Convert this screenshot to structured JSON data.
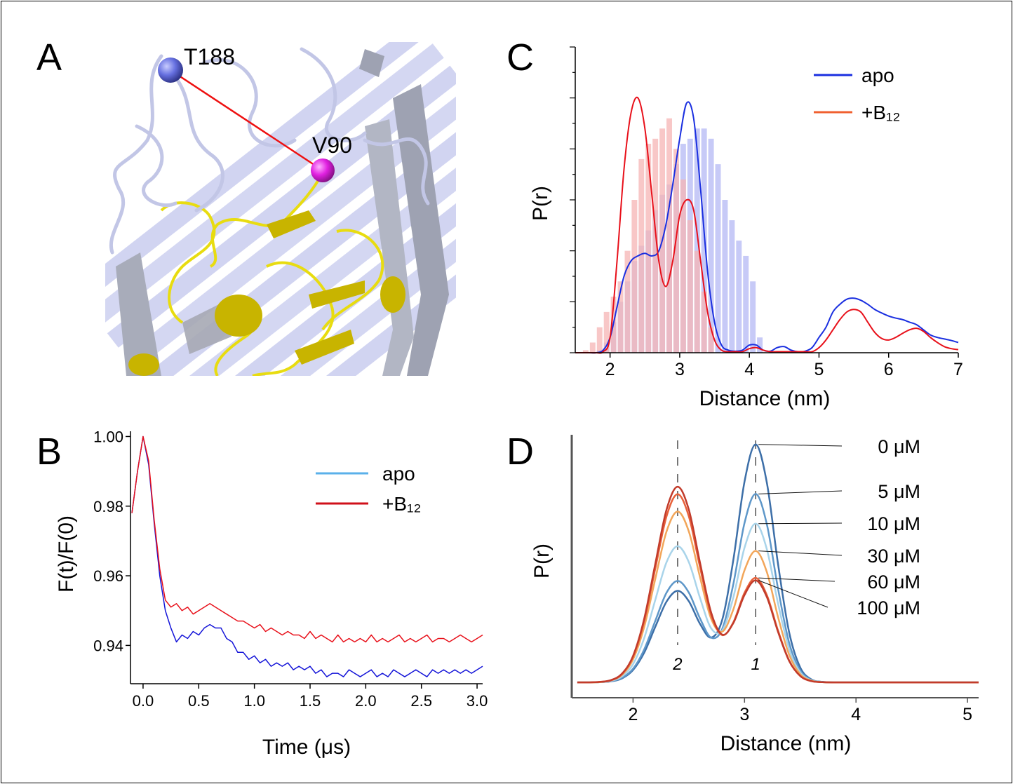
{
  "structure": {
    "label": "A",
    "residues": [
      "T188",
      "V90"
    ]
  },
  "chart_data": [
    {
      "type": "line",
      "label": "B",
      "xlabel": "Time (μs)",
      "ylabel": "F(t)/F(0)",
      "x": [
        -0.1,
        -0.05,
        0,
        0.05,
        0.1,
        0.15,
        0.2,
        0.25,
        0.3,
        0.35,
        0.4,
        0.45,
        0.5,
        0.55,
        0.6,
        0.65,
        0.7,
        0.75,
        0.8,
        0.85,
        0.9,
        0.95,
        1.0,
        1.05,
        1.1,
        1.15,
        1.2,
        1.25,
        1.3,
        1.35,
        1.4,
        1.45,
        1.5,
        1.55,
        1.6,
        1.65,
        1.7,
        1.75,
        1.8,
        1.85,
        1.9,
        1.95,
        2.0,
        2.05,
        2.1,
        2.15,
        2.2,
        2.25,
        2.3,
        2.35,
        2.4,
        2.45,
        2.5,
        2.55,
        2.6,
        2.65,
        2.7,
        2.75,
        2.8,
        2.85,
        2.9,
        2.95,
        3.0,
        3.05
      ],
      "series": [
        {
          "name": "apo",
          "color": "#1414d8",
          "legend_color": "#5ab0ea",
          "values": [
            0.978,
            0.99,
            1.0,
            0.992,
            0.975,
            0.96,
            0.95,
            0.945,
            0.941,
            0.943,
            0.942,
            0.944,
            0.943,
            0.945,
            0.946,
            0.945,
            0.945,
            0.942,
            0.941,
            0.938,
            0.938,
            0.936,
            0.937,
            0.935,
            0.936,
            0.934,
            0.935,
            0.934,
            0.935,
            0.933,
            0.934,
            0.933,
            0.934,
            0.932,
            0.933,
            0.931,
            0.932,
            0.932,
            0.931,
            0.933,
            0.932,
            0.931,
            0.932,
            0.933,
            0.931,
            0.932,
            0.931,
            0.933,
            0.932,
            0.931,
            0.932,
            0.933,
            0.932,
            0.931,
            0.933,
            0.932,
            0.933,
            0.932,
            0.933,
            0.932,
            0.933,
            0.932,
            0.933,
            0.934
          ]
        },
        {
          "name": "+B₁₂",
          "color": "#e8101a",
          "legend_color": "#d0101a",
          "values": [
            0.978,
            0.99,
            1.0,
            0.993,
            0.976,
            0.962,
            0.953,
            0.951,
            0.952,
            0.95,
            0.951,
            0.949,
            0.95,
            0.951,
            0.952,
            0.951,
            0.95,
            0.949,
            0.948,
            0.947,
            0.947,
            0.946,
            0.945,
            0.946,
            0.944,
            0.945,
            0.944,
            0.943,
            0.944,
            0.943,
            0.943,
            0.942,
            0.944,
            0.942,
            0.943,
            0.942,
            0.941,
            0.943,
            0.941,
            0.942,
            0.941,
            0.942,
            0.941,
            0.943,
            0.941,
            0.942,
            0.941,
            0.942,
            0.943,
            0.941,
            0.942,
            0.941,
            0.942,
            0.943,
            0.941,
            0.942,
            0.942,
            0.941,
            0.942,
            0.943,
            0.942,
            0.941,
            0.942,
            0.943
          ]
        }
      ],
      "xlim": [
        -0.113,
        3.05
      ],
      "ylim": [
        0.929,
        1.0015
      ],
      "xticks": [
        {
          "value": 0,
          "label": "0.0"
        },
        0.5,
        {
          "value": 1,
          "label": "1.0"
        },
        1.5,
        {
          "value": 2,
          "label": "2.0"
        },
        2.5,
        {
          "value": 3,
          "label": "3.0"
        }
      ],
      "yticks": [
        0.94,
        0.96,
        0.98,
        {
          "value": 1,
          "label": "1.00"
        }
      ]
    },
    {
      "type": "line",
      "label": "C",
      "xlabel": "Distance (nm)",
      "ylabel": "P(r)",
      "x": [
        1.5,
        1.6,
        1.7,
        1.8,
        1.9,
        2.0,
        2.1,
        2.2,
        2.3,
        2.4,
        2.5,
        2.6,
        2.7,
        2.8,
        2.9,
        3.0,
        3.1,
        3.2,
        3.3,
        3.4,
        3.5,
        3.6,
        3.7,
        3.8,
        3.9,
        4.0,
        4.1,
        4.2,
        4.3,
        4.4,
        4.5,
        4.6,
        4.7,
        4.8,
        4.9,
        5.0,
        5.1,
        5.2,
        5.3,
        5.4,
        5.5,
        5.6,
        5.7,
        5.8,
        5.9,
        6.0,
        6.1,
        6.2,
        6.3,
        6.4,
        6.5,
        6.6,
        6.7,
        6.8,
        6.9,
        7.0
      ],
      "series": [
        {
          "name": "apo",
          "color": "#1a2fe0",
          "legend_color": "#1a2fe0",
          "values": [
            0,
            0,
            0,
            0,
            0.05,
            0.3,
            0.9,
            1.5,
            1.8,
            1.9,
            1.95,
            1.9,
            2.0,
            2.5,
            3.3,
            4.2,
            4.9,
            4.6,
            3.2,
            1.6,
            0.6,
            0.15,
            0.05,
            0.03,
            0.05,
            0.15,
            0.15,
            0.05,
            0.03,
            0.1,
            0.12,
            0.05,
            0.02,
            0.03,
            0.1,
            0.3,
            0.5,
            0.8,
            0.95,
            1.05,
            1.07,
            1.03,
            0.95,
            0.85,
            0.78,
            0.72,
            0.68,
            0.65,
            0.6,
            0.55,
            0.45,
            0.35,
            0.3,
            0.27,
            0.24,
            0.2
          ]
        },
        {
          "name": "+B₁₂",
          "color": "#e8101a",
          "legend_color": "#f06030",
          "values": [
            0,
            0,
            0,
            0,
            0.02,
            0.3,
            1.8,
            3.6,
            4.7,
            5.0,
            4.4,
            3.1,
            1.8,
            1.3,
            1.8,
            2.7,
            3.0,
            2.8,
            1.8,
            0.8,
            0.25,
            0.05,
            0.02,
            0.02,
            0.02,
            0.08,
            0.1,
            0.05,
            0.02,
            0.02,
            0.02,
            0.02,
            0.02,
            0.02,
            0.02,
            0.1,
            0.25,
            0.45,
            0.65,
            0.8,
            0.85,
            0.8,
            0.6,
            0.4,
            0.28,
            0.25,
            0.3,
            0.38,
            0.45,
            0.48,
            0.42,
            0.3,
            0.2,
            0.12,
            0.08,
            0.06
          ]
        }
      ],
      "histograms": [
        {
          "color": "#b4b8f4",
          "bins": [
            1.8,
            1.9,
            2.0,
            2.1,
            2.2,
            2.3,
            2.4,
            2.5,
            2.6,
            2.7,
            2.8,
            2.9,
            3.0,
            3.1,
            3.2,
            3.3,
            3.4,
            3.5,
            3.6,
            3.7,
            3.8,
            3.9,
            4.0,
            4.1,
            4.2
          ],
          "counts": [
            0.05,
            0.2,
            0.6,
            1.0,
            1.4,
            1.8,
            2.1,
            2.4,
            2.8,
            3.1,
            3.3,
            3.7,
            4.1,
            4.2,
            4.4,
            4.4,
            4.2,
            3.7,
            3.0,
            2.6,
            2.2,
            1.9,
            1.4,
            0.3
          ]
        },
        {
          "color": "#f6b4b4",
          "bins": [
            1.6,
            1.7,
            1.8,
            1.9,
            2.0,
            2.1,
            2.2,
            2.3,
            2.4,
            2.5,
            2.6,
            2.7,
            2.8,
            2.9,
            3.0,
            3.1,
            3.2,
            3.3,
            3.4,
            3.5
          ],
          "counts": [
            0.05,
            0.2,
            0.5,
            0.8,
            1.1,
            1.4,
            2.0,
            3.0,
            3.8,
            4.1,
            4.2,
            4.4,
            4.6,
            4.0,
            3.4,
            2.6,
            2.0,
            1.2,
            0.5
          ]
        }
      ],
      "xlim": [
        1.5,
        7
      ],
      "ylim": [
        0,
        6
      ],
      "xticks": [
        2,
        3,
        4,
        5,
        6,
        7
      ],
      "ytick_marks": [
        0,
        0.5,
        1,
        1.5,
        2,
        2.5,
        3,
        3.5,
        4,
        4.5,
        5,
        5.5,
        6
      ]
    },
    {
      "type": "line",
      "label": "D",
      "xlabel": "Distance (nm)",
      "ylabel": "P(r)",
      "x": [
        1.5,
        1.6,
        1.7,
        1.8,
        1.9,
        2.0,
        2.1,
        2.2,
        2.3,
        2.4,
        2.5,
        2.6,
        2.7,
        2.8,
        2.9,
        3.0,
        3.1,
        3.2,
        3.3,
        3.4,
        3.5,
        3.6,
        3.7,
        3.8,
        3.9,
        4.0,
        4.1,
        4.2,
        4.3,
        4.4,
        4.5,
        4.6,
        4.7,
        4.8,
        4.9,
        5.0,
        5.1
      ],
      "series": [
        {
          "name": "0 μM",
          "color": "#3d6fa8",
          "values": [
            0,
            0,
            0.001,
            0.004,
            0.016,
            0.05,
            0.12,
            0.225,
            0.326,
            0.37,
            0.328,
            0.237,
            0.181,
            0.253,
            0.496,
            0.811,
            0.961,
            0.807,
            0.48,
            0.203,
            0.06,
            0.012,
            0.002,
            0,
            0,
            0,
            0,
            0,
            0,
            0,
            0,
            0,
            0,
            0,
            0,
            0,
            0
          ]
        },
        {
          "name": "5 μM",
          "color": "#5e97c9",
          "values": [
            0,
            0,
            0.001,
            0.005,
            0.018,
            0.055,
            0.133,
            0.249,
            0.362,
            0.41,
            0.363,
            0.259,
            0.181,
            0.216,
            0.398,
            0.644,
            0.761,
            0.639,
            0.38,
            0.16,
            0.048,
            0.01,
            0.002,
            0,
            0,
            0,
            0,
            0,
            0,
            0,
            0,
            0,
            0,
            0,
            0,
            0,
            0
          ]
        },
        {
          "name": "10 μM",
          "color": "#a9d4ea",
          "values": [
            0,
            0,
            0.001,
            0.006,
            0.024,
            0.074,
            0.179,
            0.334,
            0.485,
            0.55,
            0.486,
            0.342,
            0.219,
            0.209,
            0.344,
            0.544,
            0.641,
            0.538,
            0.32,
            0.135,
            0.04,
            0.008,
            0.001,
            0,
            0,
            0,
            0,
            0,
            0,
            0,
            0,
            0,
            0,
            0,
            0,
            0,
            0
          ]
        },
        {
          "name": "30 μM",
          "color": "#f2a65a",
          "values": [
            0,
            0,
            0.001,
            0.008,
            0.03,
            0.093,
            0.224,
            0.419,
            0.609,
            0.69,
            0.61,
            0.426,
            0.258,
            0.205,
            0.295,
            0.453,
            0.531,
            0.446,
            0.265,
            0.112,
            0.033,
            0.007,
            0.001,
            0,
            0,
            0,
            0,
            0,
            0,
            0,
            0,
            0,
            0,
            0,
            0,
            0,
            0
          ]
        },
        {
          "name": "60 μM",
          "color": "#e8613a",
          "values": [
            0,
            0,
            0.002,
            0.008,
            0.033,
            0.103,
            0.247,
            0.461,
            0.67,
            0.76,
            0.671,
            0.467,
            0.273,
            0.191,
            0.243,
            0.362,
            0.422,
            0.353,
            0.21,
            0.089,
            0.026,
            0.005,
            0.001,
            0,
            0,
            0,
            0,
            0,
            0,
            0,
            0,
            0,
            0,
            0,
            0,
            0,
            0
          ]
        },
        {
          "name": "100 μM",
          "color": "#c23b2b",
          "values": [
            0,
            0,
            0.002,
            0.009,
            0.035,
            0.107,
            0.257,
            0.48,
            0.697,
            0.79,
            0.698,
            0.485,
            0.283,
            0.193,
            0.24,
            0.353,
            0.412,
            0.345,
            0.205,
            0.087,
            0.026,
            0.005,
            0.001,
            0,
            0,
            0,
            0,
            0,
            0,
            0,
            0,
            0,
            0,
            0,
            0,
            0,
            0
          ]
        }
      ],
      "peak_markers": [
        {
          "x": 2.4,
          "label": "2"
        },
        {
          "x": 3.1,
          "label": "1"
        }
      ],
      "xlim": [
        1.45,
        5.1
      ],
      "ylim": [
        -0.062,
        1
      ],
      "xticks": [
        2,
        3,
        4,
        5
      ]
    }
  ]
}
